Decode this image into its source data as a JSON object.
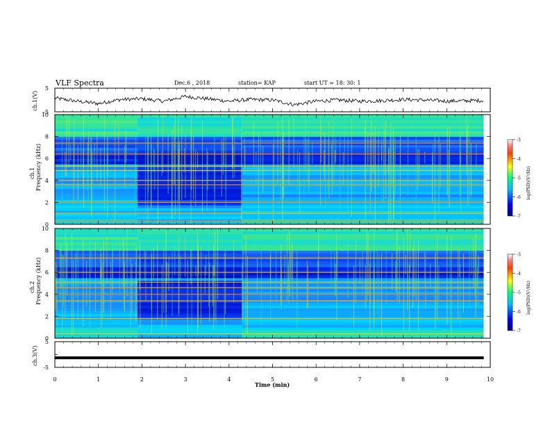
{
  "header": {
    "title": "VLF Spectra",
    "date": "Dec.6  , 2018",
    "station": "station= KAP",
    "start": "start  UT  =   18: 30: 1"
  },
  "chart_data": [
    {
      "type": "line",
      "panel": "ch1-waveform",
      "ylabel": "ch.1(V)",
      "ylim": [
        -5,
        5
      ],
      "yticks": [
        "5",
        "-5"
      ],
      "xlim": [
        0,
        10
      ],
      "description_level": "noisy waveform oscillating roughly between -3 and +3 V",
      "x": [
        0,
        0.5,
        1,
        1.5,
        2,
        2.5,
        3,
        3.5,
        4,
        4.5,
        5,
        5.5,
        6,
        6.5,
        7,
        7.5,
        8,
        8.5,
        9,
        9.5,
        9.85
      ],
      "y": [
        0.8,
        -0.5,
        -1.5,
        0.2,
        0.5,
        -0.5,
        1.5,
        0.5,
        -0.5,
        0.2,
        0.0,
        -2.0,
        -0.5,
        0.0,
        -0.5,
        -0.3,
        0.2,
        0.0,
        -0.5,
        -0.3,
        -0.2
      ]
    },
    {
      "type": "heatmap",
      "panel": "ch1-spectrogram",
      "ylabel_top": "ch.1",
      "ylabel": "Frequency  (kHz)",
      "ylim": [
        0,
        10
      ],
      "yticks": [
        "0",
        "2",
        "4",
        "6",
        "8",
        "10"
      ],
      "xlim": [
        0,
        10
      ],
      "colorbar": {
        "label": "log(PSD)(V²/Hz)",
        "ticks": [
          "-3",
          "-4",
          "-5",
          "-6",
          "-7"
        ],
        "range": [
          -7,
          -3
        ]
      },
      "bands_khz": [
        0.3,
        1.0,
        2.0,
        3.6,
        4.0,
        4.9,
        5.3,
        6.4,
        7.4
      ],
      "quiet_interval_min": [
        1.9,
        4.3
      ]
    },
    {
      "type": "heatmap",
      "panel": "ch2-spectrogram",
      "ylabel_top": "ch.2",
      "ylabel": "Frequency  (kHz)",
      "ylim": [
        0,
        10
      ],
      "yticks": [
        "0",
        "2",
        "4",
        "6",
        "8",
        "10"
      ],
      "xlim": [
        0,
        10
      ],
      "colorbar": {
        "label": "log(PSD)(V²/Hz)",
        "ticks": [
          "-3",
          "-4",
          "-5",
          "-6",
          "-7"
        ],
        "range": [
          -7,
          -3
        ]
      },
      "bands_khz": [
        0.4,
        1.8,
        3.4,
        4.0,
        4.6,
        5.1,
        6.0,
        7.3
      ],
      "quiet_interval_min": [
        1.9,
        4.3
      ]
    },
    {
      "type": "line",
      "panel": "ch3-waveform",
      "ylabel": "ch.3(V)",
      "ylim": [
        -5,
        5
      ],
      "yticks": [
        "5",
        "0",
        "-5"
      ],
      "xlim": [
        0,
        10
      ],
      "x": [
        0,
        9.85
      ],
      "y": [
        -1.3,
        -1.3
      ]
    }
  ],
  "xaxis": {
    "label": "Time  (min)",
    "ticks": [
      "0",
      "1",
      "2",
      "3",
      "4",
      "5",
      "6",
      "7",
      "8",
      "9",
      "10"
    ],
    "data_end_min": 9.85
  },
  "colors": {
    "low": "#0000aa",
    "mid": "#00c8ff",
    "high": "#ffff00",
    "peak": "#ff0000"
  }
}
